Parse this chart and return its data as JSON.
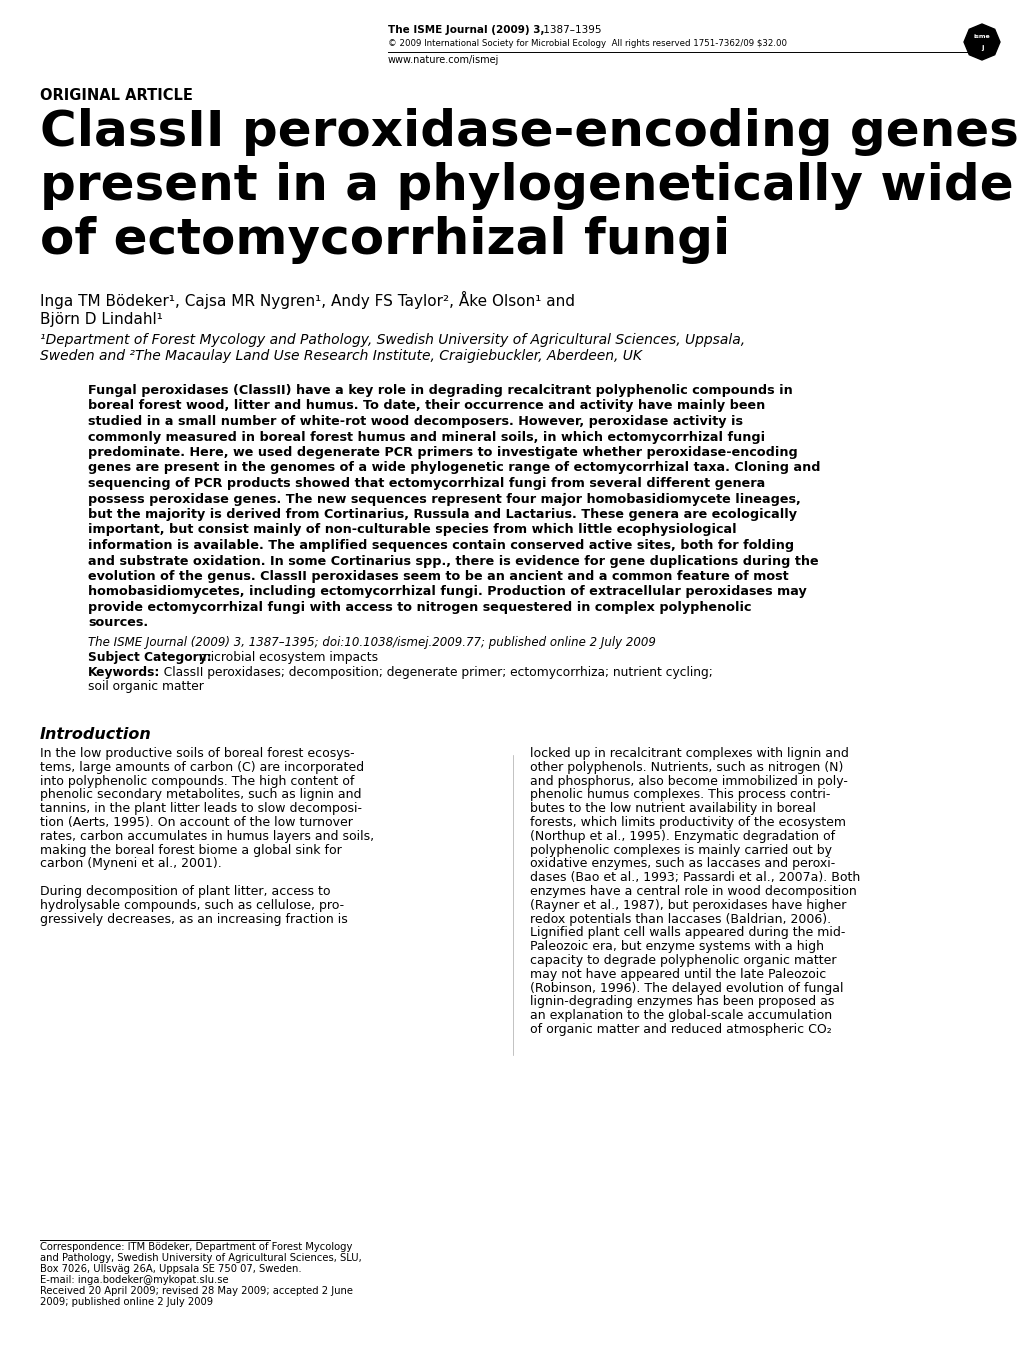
{
  "background_color": "#ffffff",
  "header_journal_bold": "The ISME Journal (2009) 3,",
  "header_journal_normal": " 1387–1395",
  "header_copyright": "© 2009 International Society for Microbial Ecology  All rights reserved 1751-7362/09 $32.00",
  "header_url": "www.nature.com/ismej",
  "original_article_label": "ORIGINAL ARTICLE",
  "title_line1": "ClassII peroxidase-encoding genes are",
  "title_line2": "present in a phylogenetically wide range",
  "title_line3": "of ectomycorrhizal fungi",
  "author_line1": "Inga TM Bödeker¹, Cajsa MR Nygren¹, Andy FS Taylor², Åke Olson¹ and",
  "author_line2": "Björn D Lindahl¹",
  "affil_line1": "¹Department of Forest Mycology and Pathology, Swedish University of Agricultural Sciences, Uppsala,",
  "affil_line2": "Sweden and ²The Macaulay Land Use Research Institute, Craigiebuckler, Aberdeen, UK",
  "abstract_lines": [
    "Fungal peroxidases (ClassII) have a key role in degrading recalcitrant polyphenolic compounds in",
    "boreal forest wood, litter and humus. To date, their occurrence and activity have mainly been",
    "studied in a small number of white-rot wood decomposers. However, peroxidase activity is",
    "commonly measured in boreal forest humus and mineral soils, in which ectomycorrhizal fungi",
    "predominate. Here, we used degenerate PCR primers to investigate whether peroxidase-encoding",
    "genes are present in the genomes of a wide phylogenetic range of ectomycorrhizal taxa. Cloning and",
    "sequencing of PCR products showed that ectomycorrhizal fungi from several different genera",
    "possess peroxidase genes. The new sequences represent four major homobasidiomycete lineages,",
    "but the majority is derived from Cortinarius, Russula and Lactarius. These genera are ecologically",
    "important, but consist mainly of non-culturable species from which little ecophysiological",
    "information is available. The amplified sequences contain conserved active sites, both for folding",
    "and substrate oxidation. In some Cortinarius spp., there is evidence for gene duplications during the",
    "evolution of the genus. ClassII peroxidases seem to be an ancient and a common feature of most",
    "homobasidiomycetes, including ectomycorrhizal fungi. Production of extracellular peroxidases may",
    "provide ectomycorrhizal fungi with access to nitrogen sequestered in complex polyphenolic",
    "sources."
  ],
  "abstract_italic_words": [
    "Cortinarius,",
    "Russula",
    "Lactarius.",
    "Cortinarius"
  ],
  "citation_line": "The ISME Journal (2009) 3, 1387–1395; doi:10.1038/ismej.2009.77; published online 2 July 2009",
  "subject_label": "Subject Category:",
  "subject_value": "  microbial ecosystem impacts",
  "keywords_label": "Keywords:",
  "keywords_value": "  ClassII peroxidases; decomposition; degenerate primer; ectomycorrhiza; nutrient cycling;",
  "keywords_line2": "soil organic matter",
  "intro_heading": "Introduction",
  "intro_col1_lines": [
    "In the low productive soils of boreal forest ecosys-",
    "tems, large amounts of carbon (C) are incorporated",
    "into polyphenolic compounds. The high content of",
    "phenolic secondary metabolites, such as lignin and",
    "tannins, in the plant litter leads to slow decomposi-",
    "tion (Aerts, 1995). On account of the low turnover",
    "rates, carbon accumulates in humus layers and soils,",
    "making the boreal forest biome a global sink for",
    "carbon (Myneni et al., 2001).",
    "",
    "During decomposition of plant litter, access to",
    "hydrolysable compounds, such as cellulose, pro-",
    "gressively decreases, as an increasing fraction is"
  ],
  "intro_col2_lines": [
    "locked up in recalcitrant complexes with lignin and",
    "other polyphenols. Nutrients, such as nitrogen (N)",
    "and phosphorus, also become immobilized in poly-",
    "phenolic humus complexes. This process contri-",
    "butes to the low nutrient availability in boreal",
    "forests, which limits productivity of the ecosystem",
    "(Northup et al., 1995). Enzymatic degradation of",
    "polyphenolic complexes is mainly carried out by",
    "oxidative enzymes, such as laccases and peroxi-",
    "dases (Bao et al., 1993; Passardi et al., 2007a). Both",
    "enzymes have a central role in wood decomposition",
    "(Rayner et al., 1987), but peroxidases have higher",
    "redox potentials than laccases (Baldrian, 2006).",
    "Lignified plant cell walls appeared during the mid-",
    "Paleozoic era, but enzyme systems with a high",
    "capacity to degrade polyphenolic organic matter",
    "may not have appeared until the late Paleozoic",
    "(Robinson, 1996). The delayed evolution of fungal",
    "lignin-degrading enzymes has been proposed as",
    "an explanation to the global-scale accumulation",
    "of organic matter and reduced atmospheric CO₂"
  ],
  "footnote_lines": [
    "Correspondence: ITM Bödeker, Department of Forest Mycology",
    "and Pathology, Swedish University of Agricultural Sciences, SLU,",
    "Box 7026, Ullsväg 26A, Uppsala SE 750 07, Sweden.",
    "E-mail: inga.bodeker@mykopat.slu.se",
    "Received 20 April 2009; revised 28 May 2009; accepted 2 June",
    "2009; published online 2 July 2009"
  ]
}
